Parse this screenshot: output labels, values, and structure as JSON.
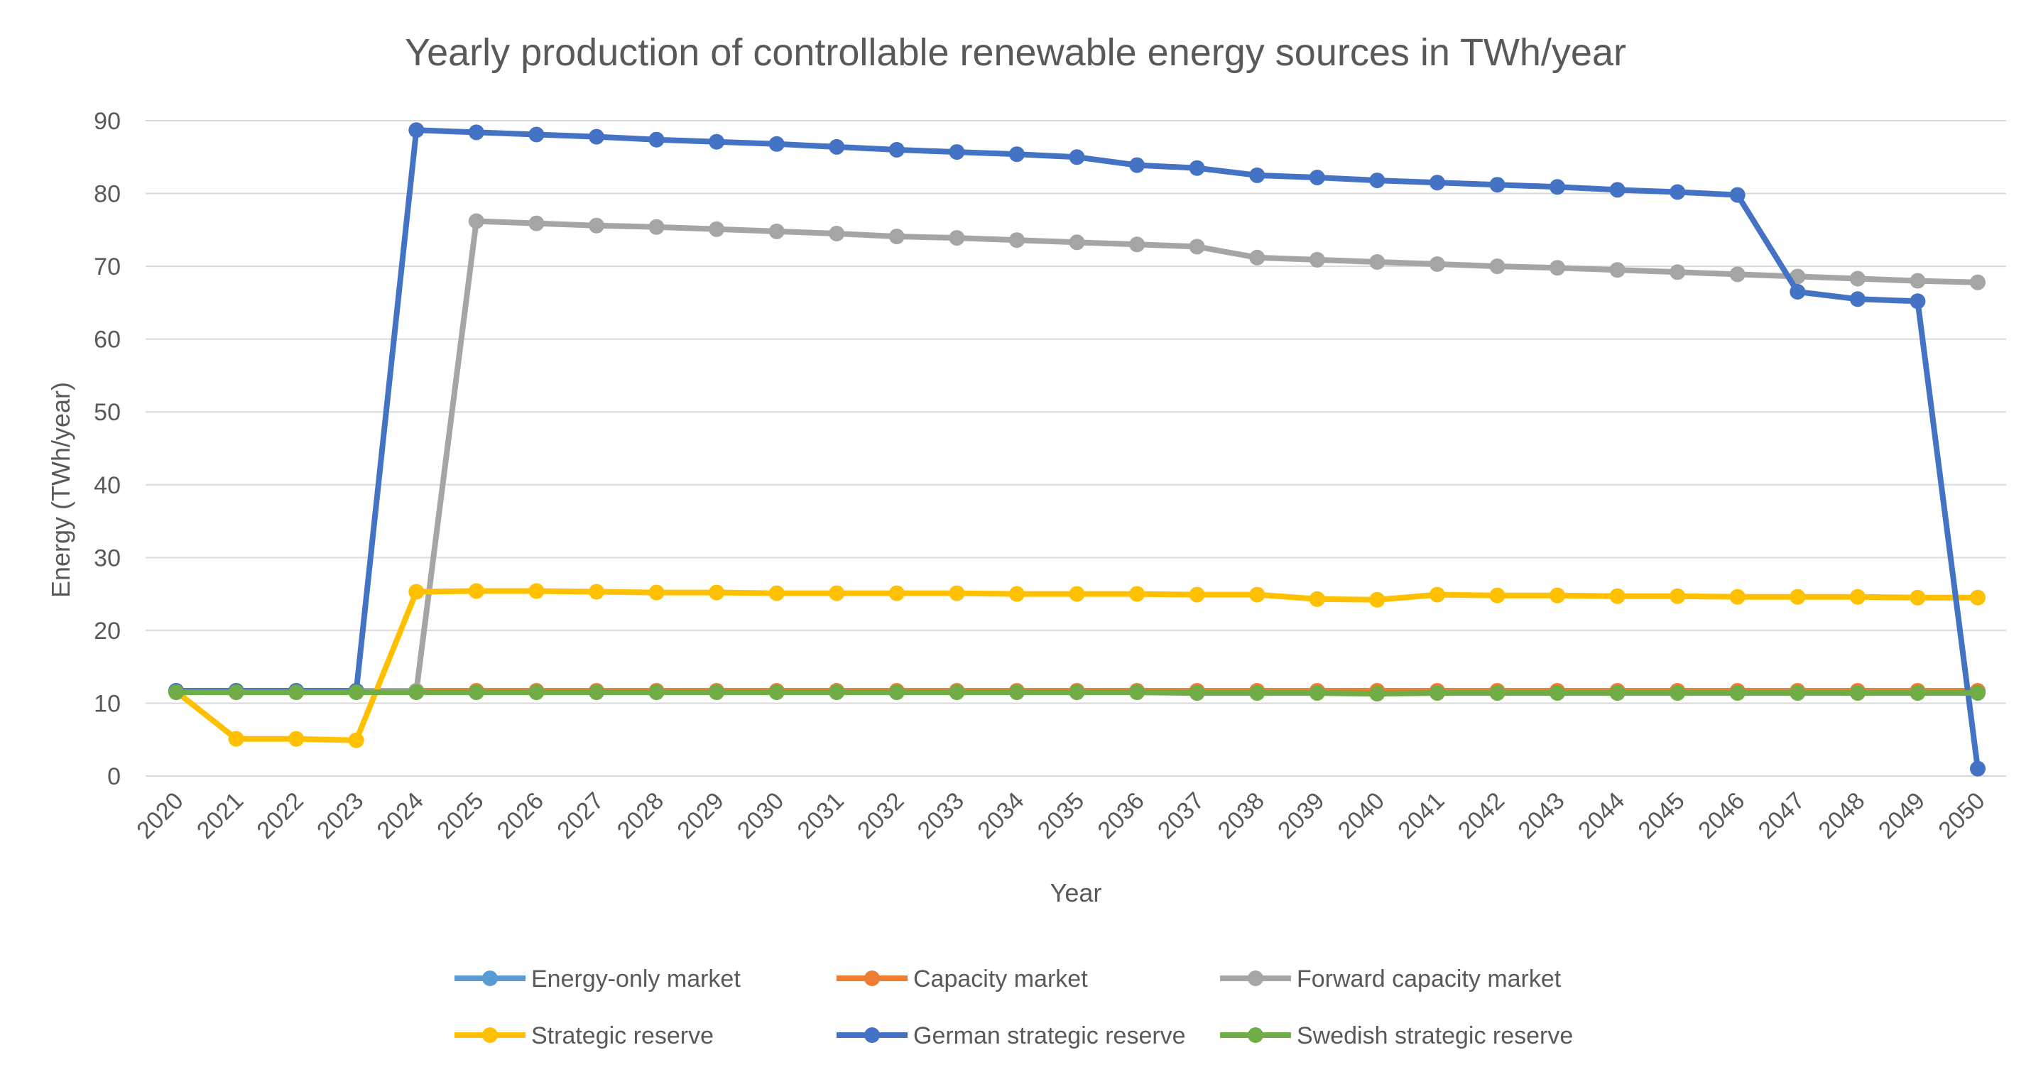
{
  "chart_data": {
    "type": "line",
    "title": "Yearly production of controllable renewable energy sources in TWh/year",
    "xlabel": "Year",
    "ylabel": "Energy (TWh/year)",
    "ylim": [
      0,
      90
    ],
    "yticks": [
      0,
      10,
      20,
      30,
      40,
      50,
      60,
      70,
      80,
      90
    ],
    "grid": true,
    "legend_position": "bottom",
    "categories": [
      "2020",
      "2021",
      "2022",
      "2023",
      "2024",
      "2025",
      "2026",
      "2027",
      "2028",
      "2029",
      "2030",
      "2031",
      "2032",
      "2033",
      "2034",
      "2035",
      "2036",
      "2037",
      "2038",
      "2039",
      "2040",
      "2041",
      "2042",
      "2043",
      "2044",
      "2045",
      "2046",
      "2047",
      "2048",
      "2049",
      "2050"
    ],
    "series": [
      {
        "name": "Energy-only market",
        "color": "#5B9BD5",
        "values": [
          11.6,
          11.6,
          11.6,
          11.6,
          11.6,
          11.6,
          11.6,
          11.6,
          11.6,
          11.6,
          11.6,
          11.6,
          11.6,
          11.6,
          11.6,
          11.6,
          11.6,
          11.6,
          11.6,
          11.6,
          11.6,
          11.6,
          11.6,
          11.6,
          11.6,
          11.6,
          11.6,
          11.6,
          11.6,
          11.6,
          11.6
        ]
      },
      {
        "name": "Capacity market",
        "color": "#ED7D31",
        "values": [
          11.7,
          11.7,
          11.7,
          11.7,
          11.7,
          11.7,
          11.7,
          11.7,
          11.7,
          11.7,
          11.7,
          11.7,
          11.7,
          11.7,
          11.7,
          11.7,
          11.7,
          11.7,
          11.7,
          11.7,
          11.7,
          11.7,
          11.7,
          11.7,
          11.7,
          11.7,
          11.7,
          11.7,
          11.7,
          11.7,
          11.7
        ]
      },
      {
        "name": "Forward capacity market",
        "color": "#A5A5A5",
        "values": [
          11.7,
          11.7,
          11.7,
          11.7,
          11.7,
          76.2,
          75.9,
          75.6,
          75.4,
          75.1,
          74.8,
          74.5,
          74.1,
          73.9,
          73.6,
          73.3,
          73.0,
          72.7,
          71.2,
          70.9,
          70.6,
          70.3,
          70.0,
          69.8,
          69.5,
          69.2,
          68.9,
          68.6,
          68.3,
          68.0,
          67.8
        ]
      },
      {
        "name": "Strategic reserve",
        "color": "#FFC000",
        "values": [
          11.6,
          5.1,
          5.1,
          4.9,
          25.3,
          25.4,
          25.4,
          25.3,
          25.2,
          25.2,
          25.1,
          25.1,
          25.1,
          25.1,
          25.0,
          25.0,
          25.0,
          24.9,
          24.9,
          24.3,
          24.2,
          24.9,
          24.8,
          24.8,
          24.7,
          24.7,
          24.6,
          24.6,
          24.6,
          24.5,
          24.5
        ]
      },
      {
        "name": "German strategic reserve",
        "color": "#4472C4",
        "values": [
          11.7,
          11.7,
          11.7,
          11.7,
          88.7,
          88.4,
          88.1,
          87.8,
          87.4,
          87.1,
          86.8,
          86.4,
          86.0,
          85.7,
          85.4,
          85.0,
          83.9,
          83.5,
          82.5,
          82.2,
          81.8,
          81.5,
          81.2,
          80.9,
          80.5,
          80.2,
          79.8,
          66.5,
          65.5,
          65.2,
          1.0
        ]
      },
      {
        "name": "Swedish strategic reserve",
        "color": "#70AD47",
        "values": [
          11.5,
          11.5,
          11.5,
          11.5,
          11.5,
          11.5,
          11.5,
          11.5,
          11.5,
          11.5,
          11.5,
          11.5,
          11.5,
          11.5,
          11.5,
          11.5,
          11.5,
          11.4,
          11.4,
          11.4,
          11.3,
          11.4,
          11.4,
          11.4,
          11.4,
          11.4,
          11.4,
          11.4,
          11.4,
          11.4,
          11.4
        ]
      }
    ]
  }
}
